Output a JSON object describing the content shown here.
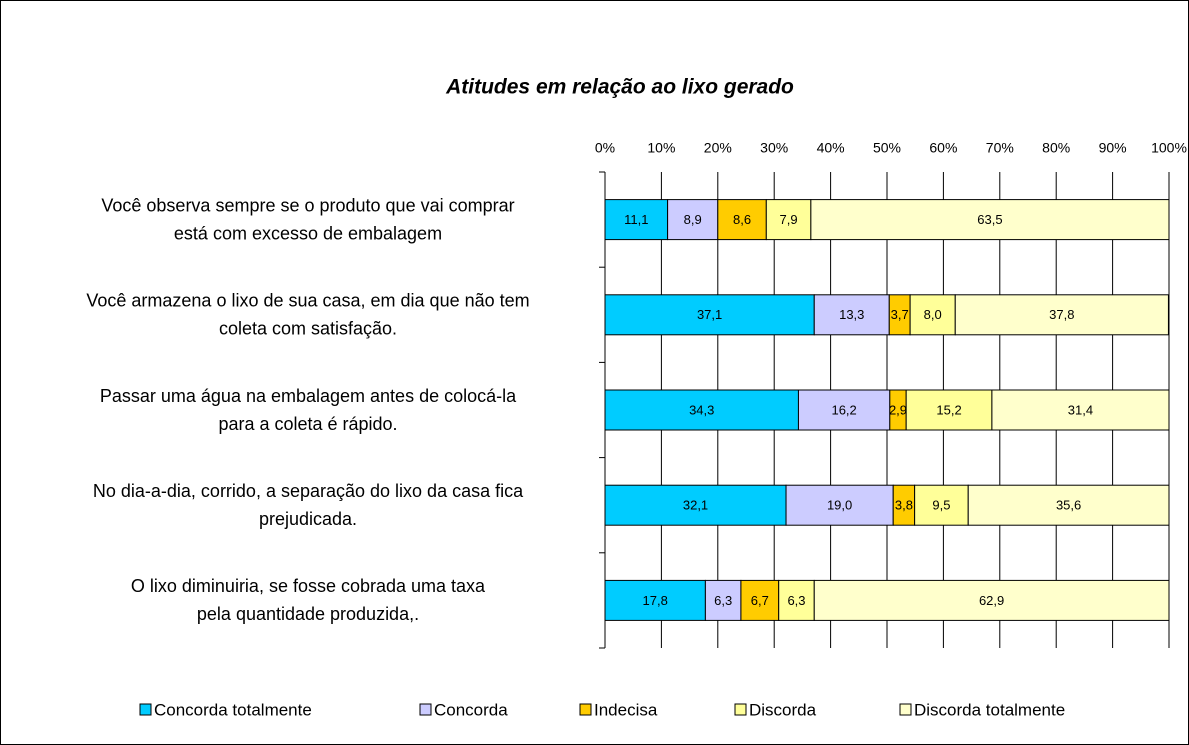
{
  "chart_data": {
    "type": "stacked_barh",
    "title": "Atitudes em relação ao lixo gerado",
    "categories": [
      [
        "Você observa sempre se o produto que vai comprar",
        "está com excesso de embalagem"
      ],
      [
        "Você armazena o lixo de sua casa, em dia que não tem",
        "coleta com satisfação."
      ],
      [
        "Passar uma água na embalagem antes de colocá-la",
        "para a coleta é rápido."
      ],
      [
        "No dia-a-dia, corrido, a separação do lixo da casa fica",
        "prejudicada."
      ],
      [
        "O lixo diminuiria, se fosse cobrada uma taxa",
        "pela quantidade produzida,."
      ]
    ],
    "series": [
      {
        "name": "Concorda totalmente",
        "color": "#00ccff",
        "values": [
          11.1,
          37.1,
          34.3,
          32.1,
          17.8
        ],
        "value_labels": [
          "11,1",
          "37,1",
          "34,3",
          "32,1",
          "17,8"
        ]
      },
      {
        "name": "Concorda",
        "color": "#ccccff",
        "values": [
          8.9,
          13.3,
          16.2,
          19.0,
          6.3
        ],
        "value_labels": [
          "8,9",
          "13,3",
          "16,2",
          "19,0",
          "6,3"
        ]
      },
      {
        "name": "Indecisa",
        "color": "#ffcc00",
        "values": [
          8.6,
          3.7,
          2.9,
          3.8,
          6.7
        ],
        "value_labels": [
          "8,6",
          "3,7",
          "2,9",
          "3,8",
          "6,7"
        ]
      },
      {
        "name": "Discorda",
        "color": "#ffff99",
        "values": [
          7.9,
          8.0,
          15.2,
          9.5,
          6.3
        ],
        "value_labels": [
          "7,9",
          "8,0",
          "15,2",
          "9,5",
          "6,3"
        ]
      },
      {
        "name": "Discorda totalmente",
        "color": "#ffffcc",
        "values": [
          63.5,
          37.8,
          31.4,
          35.6,
          62.9
        ],
        "value_labels": [
          "63,5",
          "37,8",
          "31,4",
          "35,6",
          "62,9"
        ]
      }
    ],
    "xlim": [
      0,
      100
    ],
    "xticks": [
      {
        "value": 0,
        "label": "0%"
      },
      {
        "value": 10,
        "label": "10%"
      },
      {
        "value": 20,
        "label": "20%"
      },
      {
        "value": 30,
        "label": "30%"
      },
      {
        "value": 40,
        "label": "40%"
      },
      {
        "value": 50,
        "label": "50%"
      },
      {
        "value": 60,
        "label": "60%"
      },
      {
        "value": 70,
        "label": "70%"
      },
      {
        "value": 80,
        "label": "80%"
      },
      {
        "value": 90,
        "label": "90%"
      },
      {
        "value": 100,
        "label": "100%"
      }
    ],
    "grid": true,
    "legend": "bottom"
  }
}
